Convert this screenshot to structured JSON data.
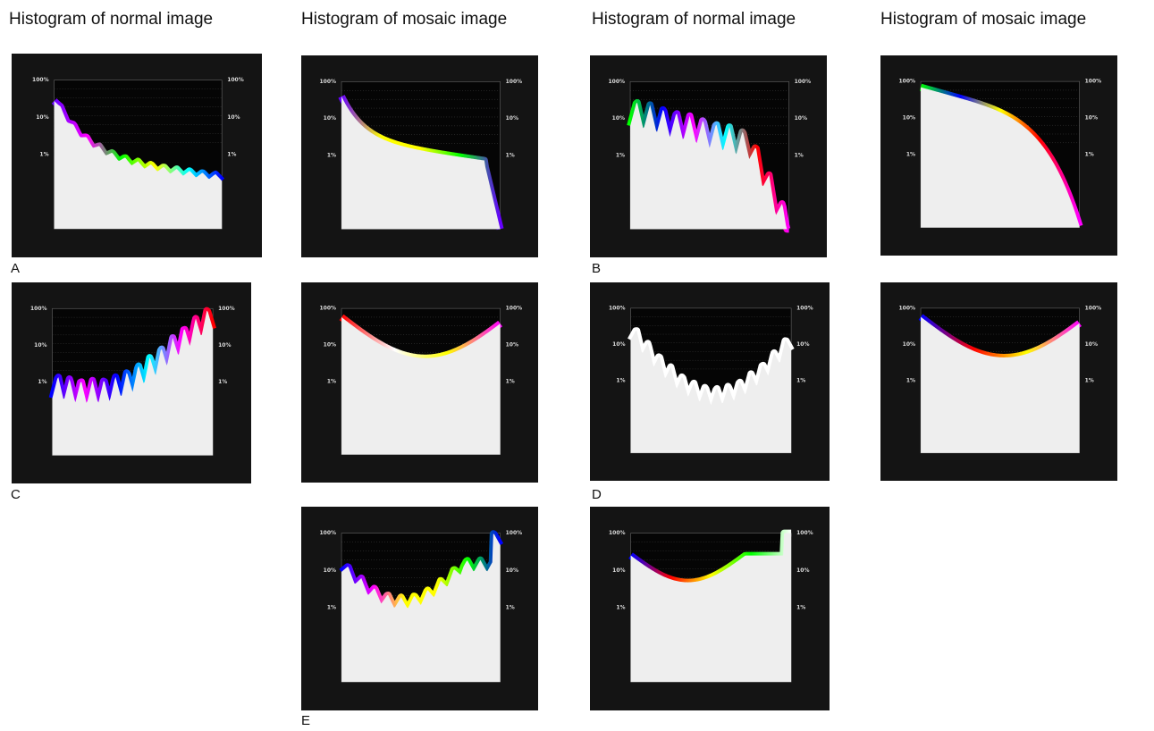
{
  "headers": [
    "Histogram of normal image",
    "Histogram of mosaic image",
    "Histogram of normal image",
    "Histogram of mosaic image"
  ],
  "labels": [
    "A",
    "B",
    "C",
    "D",
    "E"
  ],
  "axis_labels": [
    "100%",
    "10%",
    "1%"
  ]
}
